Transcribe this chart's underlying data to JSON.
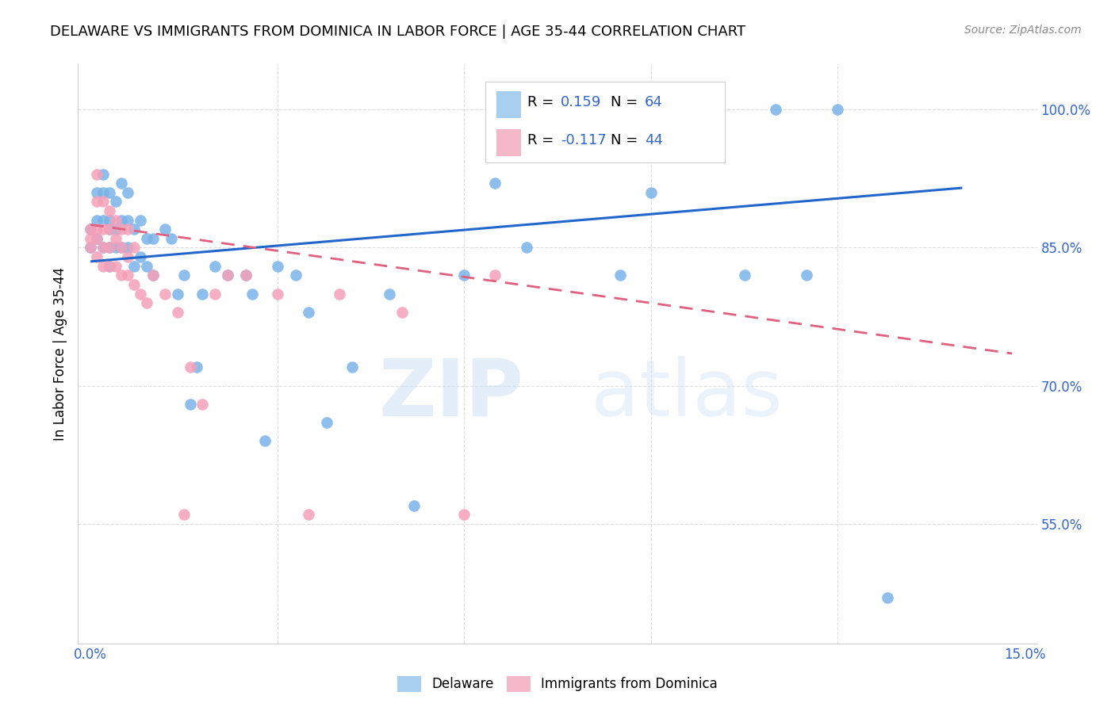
{
  "title": "DELAWARE VS IMMIGRANTS FROM DOMINICA IN LABOR FORCE | AGE 35-44 CORRELATION CHART",
  "source": "Source: ZipAtlas.com",
  "ylabel": "In Labor Force | Age 35-44",
  "xlim": [
    -0.002,
    0.152
  ],
  "ylim": [
    0.42,
    1.05
  ],
  "xticks": [
    0.0,
    0.03,
    0.06,
    0.09,
    0.12,
    0.15
  ],
  "xtick_labels": [
    "0.0%",
    "",
    "",
    "",
    "",
    "15.0%"
  ],
  "yticks_right": [
    0.55,
    0.7,
    0.85,
    1.0
  ],
  "ytick_labels_right": [
    "55.0%",
    "70.0%",
    "85.0%",
    "100.0%"
  ],
  "watermark_zip": "ZIP",
  "watermark_atlas": "atlas",
  "delaware_color": "#7ab3e8",
  "dominica_color": "#f5a0b8",
  "trend_delaware_color": "#2266cc",
  "trend_dominica_color": "#e06080",
  "legend_del_color": "#a8cff0",
  "legend_dom_color": "#f5b8c8",
  "R_label_color": "#3366cc",
  "grid_color": "#dddddd",
  "spine_color": "#cccccc",
  "title_fontsize": 13,
  "source_fontsize": 10,
  "tick_fontsize": 12,
  "ylabel_fontsize": 12,
  "del_x": [
    0.0,
    0.0,
    0.001,
    0.001,
    0.001,
    0.002,
    0.002,
    0.002,
    0.002,
    0.003,
    0.003,
    0.003,
    0.003,
    0.003,
    0.004,
    0.004,
    0.004,
    0.005,
    0.005,
    0.005,
    0.006,
    0.006,
    0.006,
    0.007,
    0.007,
    0.008,
    0.008,
    0.009,
    0.009,
    0.01,
    0.01,
    0.012,
    0.013,
    0.014,
    0.015,
    0.016,
    0.017,
    0.018,
    0.02,
    0.022,
    0.025,
    0.026,
    0.028,
    0.03,
    0.033,
    0.035,
    0.038,
    0.042,
    0.048,
    0.052,
    0.06,
    0.065,
    0.07,
    0.075,
    0.08,
    0.085,
    0.09,
    0.095,
    0.1,
    0.105,
    0.11,
    0.115,
    0.12,
    0.128
  ],
  "del_y": [
    0.87,
    0.85,
    0.91,
    0.88,
    0.86,
    0.93,
    0.91,
    0.88,
    0.85,
    0.91,
    0.88,
    0.87,
    0.85,
    0.83,
    0.9,
    0.87,
    0.85,
    0.92,
    0.88,
    0.85,
    0.91,
    0.88,
    0.85,
    0.87,
    0.83,
    0.88,
    0.84,
    0.86,
    0.83,
    0.86,
    0.82,
    0.87,
    0.86,
    0.8,
    0.82,
    0.68,
    0.72,
    0.8,
    0.83,
    0.82,
    0.82,
    0.8,
    0.64,
    0.83,
    0.82,
    0.78,
    0.66,
    0.72,
    0.8,
    0.57,
    0.82,
    0.92,
    0.85,
    1.0,
    1.0,
    0.82,
    0.91,
    1.0,
    1.0,
    0.82,
    1.0,
    0.82,
    1.0,
    0.47
  ],
  "dom_x": [
    0.0,
    0.0,
    0.0,
    0.001,
    0.001,
    0.001,
    0.001,
    0.001,
    0.002,
    0.002,
    0.002,
    0.002,
    0.003,
    0.003,
    0.003,
    0.003,
    0.004,
    0.004,
    0.004,
    0.005,
    0.005,
    0.005,
    0.006,
    0.006,
    0.006,
    0.007,
    0.007,
    0.008,
    0.009,
    0.01,
    0.012,
    0.014,
    0.015,
    0.016,
    0.018,
    0.02,
    0.022,
    0.025,
    0.03,
    0.035,
    0.04,
    0.05,
    0.06,
    0.065
  ],
  "dom_y": [
    0.87,
    0.86,
    0.85,
    0.93,
    0.9,
    0.87,
    0.86,
    0.84,
    0.9,
    0.87,
    0.85,
    0.83,
    0.89,
    0.87,
    0.85,
    0.83,
    0.88,
    0.86,
    0.83,
    0.87,
    0.85,
    0.82,
    0.87,
    0.84,
    0.82,
    0.85,
    0.81,
    0.8,
    0.79,
    0.82,
    0.8,
    0.78,
    0.56,
    0.72,
    0.68,
    0.8,
    0.82,
    0.82,
    0.8,
    0.56,
    0.8,
    0.78,
    0.56,
    0.82
  ],
  "del_trend_x0": 0.0,
  "del_trend_x1": 0.14,
  "del_trend_y0": 0.835,
  "del_trend_y1": 0.915,
  "dom_trend_x0": 0.0,
  "dom_trend_x1": 0.148,
  "dom_trend_y0": 0.875,
  "dom_trend_y1": 0.735
}
